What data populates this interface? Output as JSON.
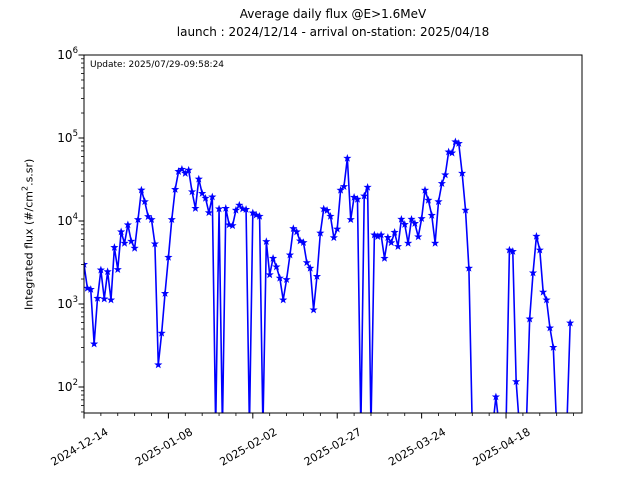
{
  "chart": {
    "title": "Average daily flux @E>1.6MeV",
    "subtitle": "launch : 2024/12/14 - arrival on-station: 2025/04/18",
    "update_text": "Update: 2025/07/29-09:58:24"
  },
  "chart_data": {
    "type": "line",
    "title": "Average daily flux @E>1.6MeV",
    "subtitle": "launch : 2024/12/14 - arrival on-station: 2025/04/18",
    "annotation": "Update: 2025/07/29-09:58:24",
    "ylabel_parts": {
      "prefix": "Integrated flux (#/cm",
      "sup": "2",
      "suffix": ".s.sr)"
    },
    "legend": null,
    "grid": false,
    "line_color": "#0000ff",
    "marker": "star",
    "x_axis": {
      "start_date": "2024-12-14",
      "tick_labels": [
        "2024-12-14",
        "2025-01-08",
        "2025-02-02",
        "2025-02-27",
        "2025-03-24",
        "2025-04-18"
      ],
      "tick_day_offsets": [
        0,
        25,
        50,
        75,
        100,
        125
      ],
      "minor_tick_every_days": 5,
      "xlim_days": [
        0,
        147.5
      ]
    },
    "y_axis": {
      "scale": "log",
      "ylim": [
        48.6,
        1000000
      ],
      "tick_exponents": [
        6,
        5,
        4,
        3,
        2
      ]
    },
    "series": [
      {
        "name": "integrated-daily-flux",
        "start_date": "2024-12-14",
        "note": "one value per day; 0 = data gap (line drops below axis)",
        "values": [
          3000,
          1550,
          1500,
          330,
          1170,
          2570,
          1150,
          2450,
          1120,
          4800,
          2600,
          7400,
          5400,
          9000,
          5700,
          4700,
          10400,
          23600,
          17100,
          11300,
          10400,
          5300,
          185,
          445,
          1340,
          3650,
          10400,
          24000,
          39500,
          42000,
          37500,
          41000,
          22500,
          14200,
          32000,
          21500,
          18800,
          12600,
          19500,
          0,
          14000,
          0,
          14200,
          9000,
          8800,
          13500,
          15500,
          14000,
          13800,
          0,
          12500,
          11800,
          11400,
          0,
          5650,
          2250,
          3550,
          2800,
          2050,
          1120,
          1970,
          3900,
          8100,
          7400,
          5750,
          5500,
          3150,
          2700,
          850,
          2150,
          7150,
          14000,
          13400,
          11400,
          6300,
          8000,
          23500,
          26000,
          57000,
          10400,
          19300,
          18300,
          0,
          20000,
          25500,
          0,
          6800,
          6500,
          6800,
          3550,
          6330,
          5480,
          7300,
          4930,
          10500,
          9100,
          5400,
          10500,
          9350,
          6450,
          10700,
          23500,
          17800,
          11700,
          5400,
          17100,
          28300,
          36000,
          68000,
          66000,
          90000,
          86000,
          37600,
          13500,
          2700,
          0,
          0,
          0,
          0,
          0,
          0,
          0,
          76,
          0,
          0,
          0,
          4470,
          4300,
          116,
          0,
          0,
          0,
          660,
          2370,
          6550,
          4470,
          1390,
          1120,
          515,
          300,
          0,
          0,
          0,
          0,
          590
        ]
      }
    ]
  }
}
